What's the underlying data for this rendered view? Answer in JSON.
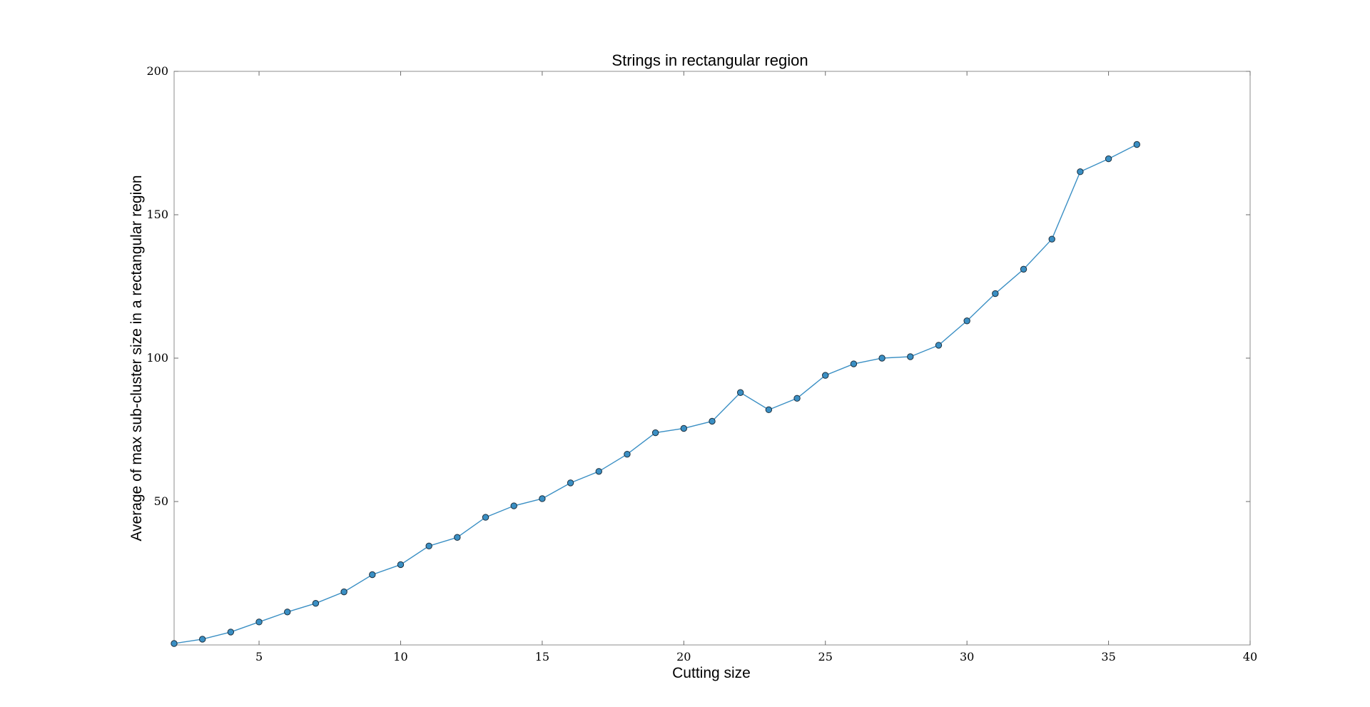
{
  "chart_data": {
    "type": "line",
    "title": "Strings in rectangular region",
    "xlabel": "Cutting size",
    "ylabel": "Average of max sub-cluster size in a rectangular region",
    "xlim": [
      2,
      40
    ],
    "ylim": [
      0,
      200
    ],
    "xticks": [
      5,
      10,
      15,
      20,
      25,
      30,
      35,
      40
    ],
    "yticks": [
      50,
      100,
      150,
      200
    ],
    "grid": false,
    "legend": "none",
    "color": "#3a8fc4",
    "series": [
      {
        "x": [
          2,
          3,
          4,
          5,
          6,
          7,
          8,
          9,
          10,
          11,
          12,
          13,
          14,
          15,
          16,
          17,
          18,
          19,
          20,
          21,
          22,
          23,
          24,
          25,
          26,
          27,
          28,
          29,
          30,
          31,
          32,
          33,
          34,
          35,
          36
        ],
        "values": [
          0.5,
          2.0,
          4.5,
          8.0,
          11.5,
          14.5,
          18.5,
          24.5,
          28.0,
          34.5,
          37.5,
          44.5,
          48.5,
          51.0,
          56.5,
          60.5,
          66.5,
          74.0,
          75.5,
          78.0,
          88.0,
          82.0,
          86.0,
          94.0,
          98.0,
          100.0,
          100.5,
          104.5,
          113.0,
          122.5,
          131.0,
          141.5,
          165.0,
          169.5,
          174.5
        ]
      }
    ]
  }
}
